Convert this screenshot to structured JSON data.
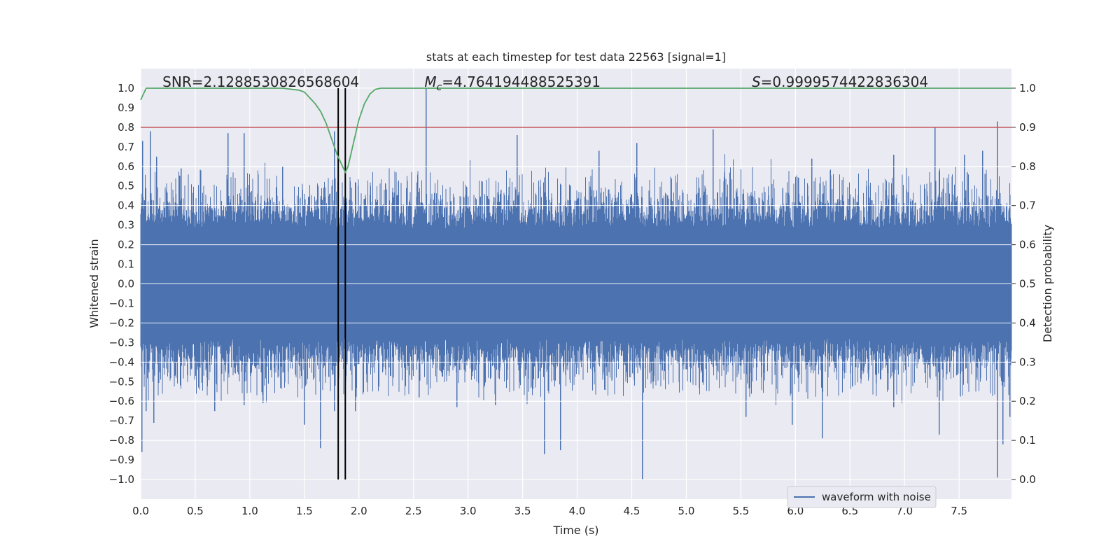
{
  "chart_data": {
    "type": "line",
    "title": "stats at each timestep for test data 22563 [signal=1]",
    "xlabel": "Time (s)",
    "ylabel": "Whitened strain",
    "y2label": "Detection probability",
    "xlim": [
      0.0,
      7.98
    ],
    "ylim": [
      -1.1,
      1.1
    ],
    "y2lim": [
      -0.05,
      1.05
    ],
    "xticks": [
      0.0,
      0.5,
      1.0,
      1.5,
      2.0,
      2.5,
      3.0,
      3.5,
      4.0,
      4.5,
      5.0,
      5.5,
      6.0,
      6.5,
      7.0,
      7.5
    ],
    "xtick_labels": [
      "0.0",
      "0.5",
      "1.0",
      "1.5",
      "2.0",
      "2.5",
      "3.0",
      "3.5",
      "4.0",
      "4.5",
      "5.0",
      "5.5",
      "6.0",
      "6.5",
      "7.0",
      "7.5"
    ],
    "yticks": [
      -1.0,
      -0.9,
      -0.8,
      -0.7,
      -0.6,
      -0.5,
      -0.4,
      -0.3,
      -0.2,
      -0.1,
      0.0,
      0.1,
      0.2,
      0.3,
      0.4,
      0.5,
      0.6,
      0.7,
      0.8,
      0.9,
      1.0
    ],
    "ytick_labels": [
      "−1.0",
      "−0.9",
      "−0.8",
      "−0.7",
      "−0.6",
      "−0.5",
      "−0.4",
      "−0.3",
      "−0.2",
      "−0.1",
      "0.0",
      "0.1",
      "0.2",
      "0.3",
      "0.4",
      "0.5",
      "0.6",
      "0.7",
      "0.8",
      "0.9",
      "1.0"
    ],
    "y2ticks": [
      0.0,
      0.1,
      0.2,
      0.3,
      0.4,
      0.5,
      0.6,
      0.7,
      0.8,
      0.9,
      1.0
    ],
    "y2tick_labels": [
      "0.0",
      "0.1",
      "0.2",
      "0.3",
      "0.4",
      "0.5",
      "0.6",
      "0.7",
      "0.8",
      "0.9",
      "1.0"
    ],
    "stats": {
      "snr": {
        "label": "SNR=2.1288530826568604",
        "x": 0.2
      },
      "mc_symbol": "M",
      "mc_sub": "c",
      "mc_value": "=4.764194488525391",
      "mc_x": 2.6,
      "s_symbol": "S",
      "s_value": "=0.9999574422836304",
      "s_x": 5.6
    },
    "threshold": {
      "y2": 0.9,
      "color": "#c44e52"
    },
    "event_lines_x": [
      1.81,
      1.875
    ],
    "event_line_ylim": [
      -1.0,
      1.0
    ],
    "waveform": {
      "name": "waveform with noise",
      "color": "#4c72b0",
      "spikes_upper": [
        [
          0.02,
          0.73
        ],
        [
          0.09,
          0.78
        ],
        [
          0.15,
          0.65
        ],
        [
          0.37,
          0.59
        ],
        [
          0.55,
          0.58
        ],
        [
          0.8,
          0.77
        ],
        [
          0.95,
          0.77
        ],
        [
          1.3,
          0.6
        ],
        [
          1.78,
          0.78
        ],
        [
          2.62,
          1.0
        ],
        [
          3.45,
          0.76
        ],
        [
          4.2,
          0.68
        ],
        [
          4.55,
          0.72
        ],
        [
          5.25,
          0.79
        ],
        [
          6.15,
          0.64
        ],
        [
          6.9,
          0.66
        ],
        [
          7.28,
          0.8
        ],
        [
          7.55,
          0.66
        ],
        [
          7.72,
          0.68
        ],
        [
          7.85,
          0.83
        ]
      ],
      "spikes_lower": [
        [
          0.01,
          -0.86
        ],
        [
          0.05,
          -0.65
        ],
        [
          0.12,
          -0.71
        ],
        [
          0.68,
          -0.65
        ],
        [
          0.95,
          -0.62
        ],
        [
          1.12,
          -0.61
        ],
        [
          1.5,
          -0.72
        ],
        [
          1.65,
          -0.84
        ],
        [
          1.78,
          -0.65
        ],
        [
          1.97,
          -0.65
        ],
        [
          2.55,
          -0.58
        ],
        [
          2.9,
          -0.63
        ],
        [
          3.25,
          -0.62
        ],
        [
          3.7,
          -0.87
        ],
        [
          3.85,
          -0.85
        ],
        [
          4.6,
          -1.0
        ],
        [
          5.55,
          -0.68
        ],
        [
          5.97,
          -0.72
        ],
        [
          6.25,
          -0.79
        ],
        [
          6.9,
          -0.63
        ],
        [
          7.32,
          -0.77
        ],
        [
          7.85,
          -0.99
        ],
        [
          7.9,
          -0.82
        ],
        [
          7.97,
          -0.68
        ]
      ]
    },
    "probability": {
      "name": "detection probability",
      "color": "#55a868",
      "x": [
        0.0,
        0.05,
        0.1,
        0.3,
        0.6,
        1.0,
        1.3,
        1.45,
        1.5,
        1.55,
        1.6,
        1.65,
        1.7,
        1.75,
        1.8,
        1.85,
        1.875,
        1.9,
        1.95,
        2.0,
        2.05,
        2.1,
        2.15,
        2.2,
        2.4,
        3.0,
        4.0,
        5.0,
        6.0,
        7.0,
        7.98
      ],
      "y2": [
        0.97,
        1.0,
        1.0,
        1.0,
        1.0,
        1.0,
        1.0,
        0.995,
        0.99,
        0.975,
        0.96,
        0.94,
        0.91,
        0.87,
        0.83,
        0.8,
        0.785,
        0.8,
        0.86,
        0.92,
        0.96,
        0.985,
        0.997,
        1.0,
        1.0,
        1.0,
        1.0,
        1.0,
        1.0,
        1.0,
        1.0
      ]
    },
    "legend": {
      "label": "waveform with noise",
      "position": "lower-right"
    }
  }
}
